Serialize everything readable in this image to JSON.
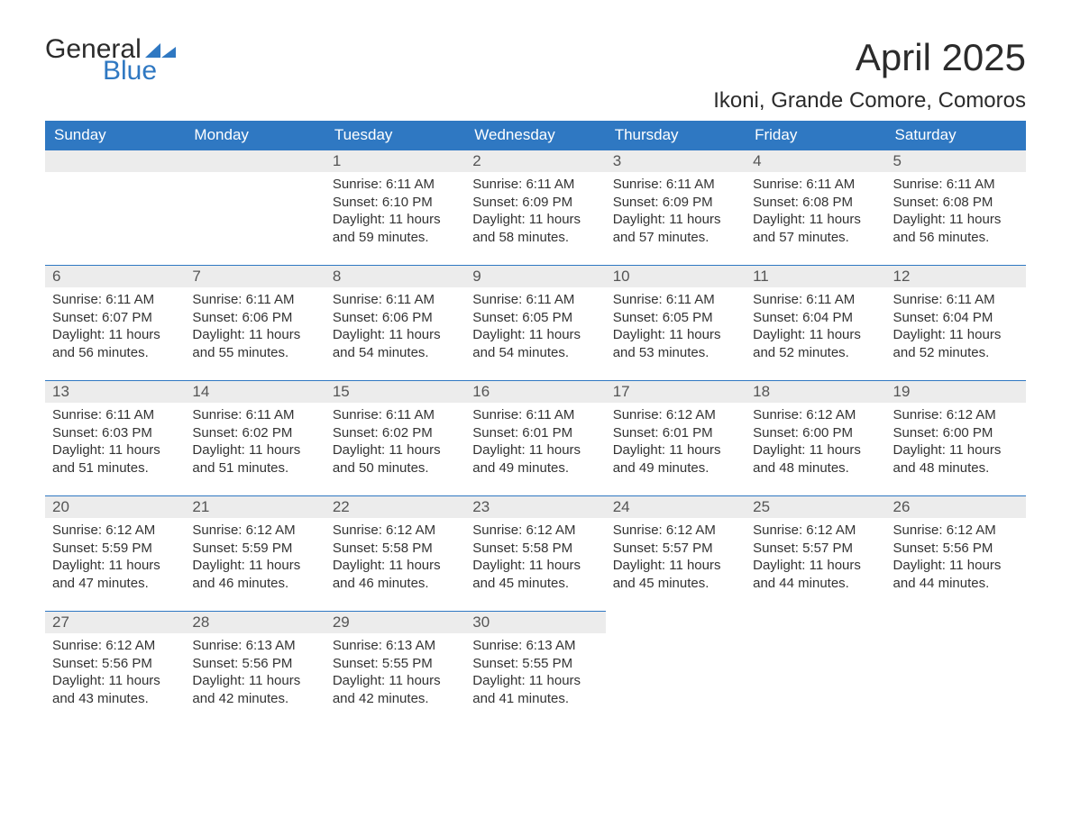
{
  "logo": {
    "text_general": "General",
    "text_blue": "Blue",
    "accent_color": "#2f78c2"
  },
  "header": {
    "month_title": "April 2025",
    "location": "Ikoni, Grande Comore, Comoros"
  },
  "colors": {
    "header_bg": "#2f78c2",
    "header_text": "#ffffff",
    "daynum_bg": "#ececec",
    "row_border": "#2f78c2",
    "body_text": "#333333",
    "background": "#ffffff"
  },
  "typography": {
    "title_fontsize": 42,
    "location_fontsize": 24,
    "dayheader_fontsize": 17,
    "daynum_fontsize": 17,
    "data_fontsize": 15,
    "font_family": "Segoe UI"
  },
  "calendar": {
    "type": "table",
    "columns": [
      "Sunday",
      "Monday",
      "Tuesday",
      "Wednesday",
      "Thursday",
      "Friday",
      "Saturday"
    ],
    "weeks": [
      [
        null,
        null,
        {
          "n": "1",
          "sr": "Sunrise: 6:11 AM",
          "ss": "Sunset: 6:10 PM",
          "dl1": "Daylight: 11 hours",
          "dl2": "and 59 minutes."
        },
        {
          "n": "2",
          "sr": "Sunrise: 6:11 AM",
          "ss": "Sunset: 6:09 PM",
          "dl1": "Daylight: 11 hours",
          "dl2": "and 58 minutes."
        },
        {
          "n": "3",
          "sr": "Sunrise: 6:11 AM",
          "ss": "Sunset: 6:09 PM",
          "dl1": "Daylight: 11 hours",
          "dl2": "and 57 minutes."
        },
        {
          "n": "4",
          "sr": "Sunrise: 6:11 AM",
          "ss": "Sunset: 6:08 PM",
          "dl1": "Daylight: 11 hours",
          "dl2": "and 57 minutes."
        },
        {
          "n": "5",
          "sr": "Sunrise: 6:11 AM",
          "ss": "Sunset: 6:08 PM",
          "dl1": "Daylight: 11 hours",
          "dl2": "and 56 minutes."
        }
      ],
      [
        {
          "n": "6",
          "sr": "Sunrise: 6:11 AM",
          "ss": "Sunset: 6:07 PM",
          "dl1": "Daylight: 11 hours",
          "dl2": "and 56 minutes."
        },
        {
          "n": "7",
          "sr": "Sunrise: 6:11 AM",
          "ss": "Sunset: 6:06 PM",
          "dl1": "Daylight: 11 hours",
          "dl2": "and 55 minutes."
        },
        {
          "n": "8",
          "sr": "Sunrise: 6:11 AM",
          "ss": "Sunset: 6:06 PM",
          "dl1": "Daylight: 11 hours",
          "dl2": "and 54 minutes."
        },
        {
          "n": "9",
          "sr": "Sunrise: 6:11 AM",
          "ss": "Sunset: 6:05 PM",
          "dl1": "Daylight: 11 hours",
          "dl2": "and 54 minutes."
        },
        {
          "n": "10",
          "sr": "Sunrise: 6:11 AM",
          "ss": "Sunset: 6:05 PM",
          "dl1": "Daylight: 11 hours",
          "dl2": "and 53 minutes."
        },
        {
          "n": "11",
          "sr": "Sunrise: 6:11 AM",
          "ss": "Sunset: 6:04 PM",
          "dl1": "Daylight: 11 hours",
          "dl2": "and 52 minutes."
        },
        {
          "n": "12",
          "sr": "Sunrise: 6:11 AM",
          "ss": "Sunset: 6:04 PM",
          "dl1": "Daylight: 11 hours",
          "dl2": "and 52 minutes."
        }
      ],
      [
        {
          "n": "13",
          "sr": "Sunrise: 6:11 AM",
          "ss": "Sunset: 6:03 PM",
          "dl1": "Daylight: 11 hours",
          "dl2": "and 51 minutes."
        },
        {
          "n": "14",
          "sr": "Sunrise: 6:11 AM",
          "ss": "Sunset: 6:02 PM",
          "dl1": "Daylight: 11 hours",
          "dl2": "and 51 minutes."
        },
        {
          "n": "15",
          "sr": "Sunrise: 6:11 AM",
          "ss": "Sunset: 6:02 PM",
          "dl1": "Daylight: 11 hours",
          "dl2": "and 50 minutes."
        },
        {
          "n": "16",
          "sr": "Sunrise: 6:11 AM",
          "ss": "Sunset: 6:01 PM",
          "dl1": "Daylight: 11 hours",
          "dl2": "and 49 minutes."
        },
        {
          "n": "17",
          "sr": "Sunrise: 6:12 AM",
          "ss": "Sunset: 6:01 PM",
          "dl1": "Daylight: 11 hours",
          "dl2": "and 49 minutes."
        },
        {
          "n": "18",
          "sr": "Sunrise: 6:12 AM",
          "ss": "Sunset: 6:00 PM",
          "dl1": "Daylight: 11 hours",
          "dl2": "and 48 minutes."
        },
        {
          "n": "19",
          "sr": "Sunrise: 6:12 AM",
          "ss": "Sunset: 6:00 PM",
          "dl1": "Daylight: 11 hours",
          "dl2": "and 48 minutes."
        }
      ],
      [
        {
          "n": "20",
          "sr": "Sunrise: 6:12 AM",
          "ss": "Sunset: 5:59 PM",
          "dl1": "Daylight: 11 hours",
          "dl2": "and 47 minutes."
        },
        {
          "n": "21",
          "sr": "Sunrise: 6:12 AM",
          "ss": "Sunset: 5:59 PM",
          "dl1": "Daylight: 11 hours",
          "dl2": "and 46 minutes."
        },
        {
          "n": "22",
          "sr": "Sunrise: 6:12 AM",
          "ss": "Sunset: 5:58 PM",
          "dl1": "Daylight: 11 hours",
          "dl2": "and 46 minutes."
        },
        {
          "n": "23",
          "sr": "Sunrise: 6:12 AM",
          "ss": "Sunset: 5:58 PM",
          "dl1": "Daylight: 11 hours",
          "dl2": "and 45 minutes."
        },
        {
          "n": "24",
          "sr": "Sunrise: 6:12 AM",
          "ss": "Sunset: 5:57 PM",
          "dl1": "Daylight: 11 hours",
          "dl2": "and 45 minutes."
        },
        {
          "n": "25",
          "sr": "Sunrise: 6:12 AM",
          "ss": "Sunset: 5:57 PM",
          "dl1": "Daylight: 11 hours",
          "dl2": "and 44 minutes."
        },
        {
          "n": "26",
          "sr": "Sunrise: 6:12 AM",
          "ss": "Sunset: 5:56 PM",
          "dl1": "Daylight: 11 hours",
          "dl2": "and 44 minutes."
        }
      ],
      [
        {
          "n": "27",
          "sr": "Sunrise: 6:12 AM",
          "ss": "Sunset: 5:56 PM",
          "dl1": "Daylight: 11 hours",
          "dl2": "and 43 minutes."
        },
        {
          "n": "28",
          "sr": "Sunrise: 6:13 AM",
          "ss": "Sunset: 5:56 PM",
          "dl1": "Daylight: 11 hours",
          "dl2": "and 42 minutes."
        },
        {
          "n": "29",
          "sr": "Sunrise: 6:13 AM",
          "ss": "Sunset: 5:55 PM",
          "dl1": "Daylight: 11 hours",
          "dl2": "and 42 minutes."
        },
        {
          "n": "30",
          "sr": "Sunrise: 6:13 AM",
          "ss": "Sunset: 5:55 PM",
          "dl1": "Daylight: 11 hours",
          "dl2": "and 41 minutes."
        },
        null,
        null,
        null
      ]
    ]
  }
}
